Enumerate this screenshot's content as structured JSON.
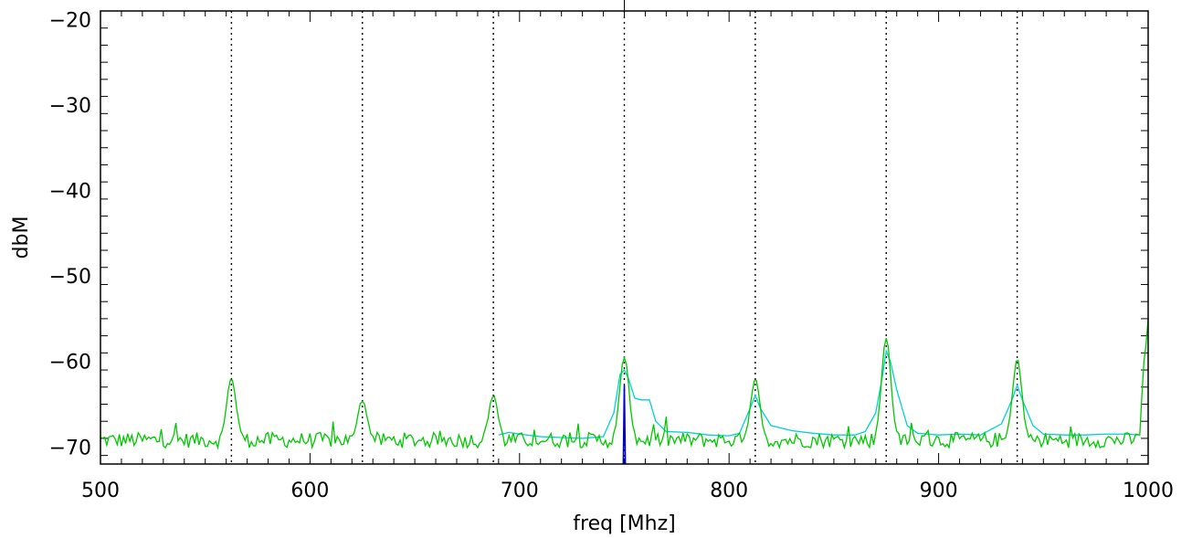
{
  "chart_data": {
    "type": "line",
    "title": "",
    "xlabel": "freq [Mhz]",
    "ylabel": "dbM",
    "xlim": [
      500,
      1000
    ],
    "ylim": [
      -72,
      -19
    ],
    "x_ticks": [
      500,
      600,
      700,
      800,
      900,
      1000
    ],
    "y_ticks": [
      -20,
      -30,
      -40,
      -50,
      -60,
      -70
    ],
    "grid": false,
    "colors": {
      "green": "#00c800",
      "cyan": "#00d2d2",
      "blue": "#0000c8",
      "markers": "#000000"
    },
    "marker_lines": [
      562.5,
      625,
      687.5,
      750,
      812.5,
      875,
      937.5
    ],
    "top_tick": 750,
    "green_noise_floor": -69.2,
    "green_peaks": [
      {
        "x": 562.5,
        "y": -62.0
      },
      {
        "x": 625.0,
        "y": -64.5
      },
      {
        "x": 687.5,
        "y": -64.0
      },
      {
        "x": 750.0,
        "y": -59.5
      },
      {
        "x": 812.5,
        "y": -62.2
      },
      {
        "x": 875.0,
        "y": -57.2
      },
      {
        "x": 937.5,
        "y": -59.7
      }
    ],
    "green_end": {
      "x": 1000,
      "y": -55.0
    },
    "cyan_series": {
      "x": [
        690,
        695,
        700,
        710,
        720,
        730,
        740,
        745,
        748,
        750,
        752,
        755,
        758,
        762,
        765,
        770,
        780,
        790,
        800,
        805,
        810,
        812.5,
        815,
        820,
        830,
        840,
        850,
        860,
        865,
        870,
        873,
        875,
        877,
        880,
        885,
        890,
        900,
        910,
        920,
        930,
        935,
        937.5,
        940,
        945,
        950,
        960,
        970,
        980,
        990,
        995
      ],
      "y": [
        -68.6,
        -68.3,
        -68.5,
        -68.8,
        -68.9,
        -69.0,
        -68.8,
        -66.0,
        -61.5,
        -61.0,
        -62.0,
        -64.3,
        -64.5,
        -64.5,
        -67.0,
        -68.2,
        -68.3,
        -68.6,
        -68.7,
        -68.4,
        -65.5,
        -64.0,
        -65.5,
        -67.5,
        -68.1,
        -68.4,
        -68.6,
        -68.6,
        -68.2,
        -66.0,
        -62.0,
        -58.8,
        -60.0,
        -63.3,
        -67.5,
        -68.4,
        -68.6,
        -68.5,
        -68.6,
        -67.3,
        -64.5,
        -62.8,
        -64.5,
        -67.5,
        -68.5,
        -68.6,
        -68.6,
        -68.5,
        -68.5,
        -68.6
      ]
    },
    "blue_series": {
      "x": [
        749.5,
        750,
        750.5
      ],
      "y": [
        -72,
        -62.8,
        -72
      ]
    }
  }
}
